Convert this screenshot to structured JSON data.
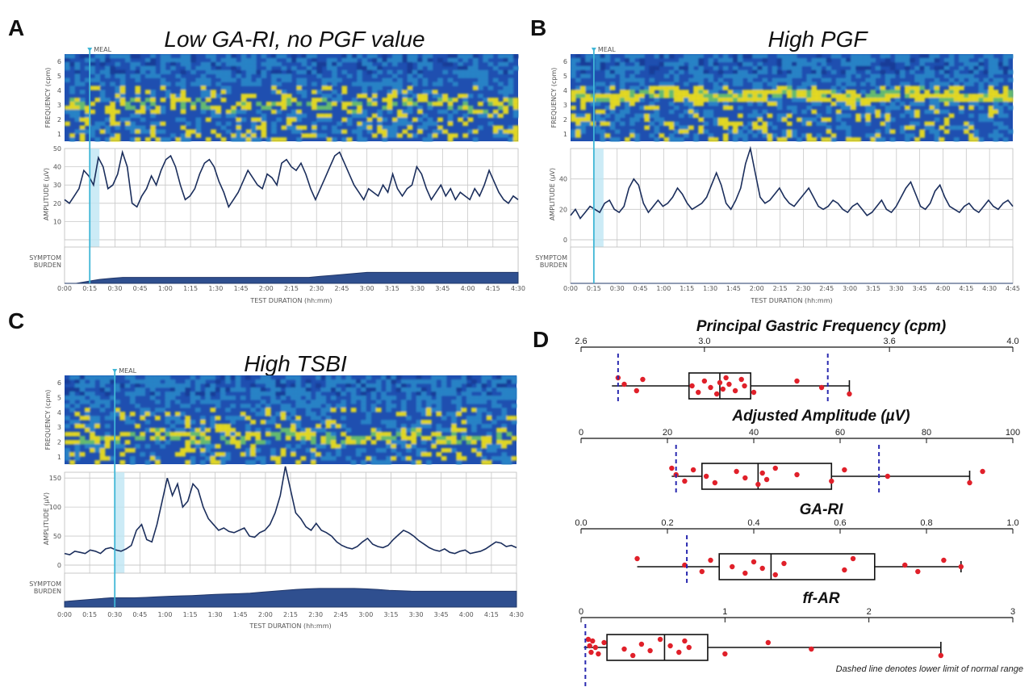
{
  "colors": {
    "spec_bg": "#1f4fb0",
    "spec_mid": "#2a86c8",
    "spec_hot": "#f2e21a",
    "spec_warm": "#6cc46a",
    "line": "#1b2e5c",
    "meal": "#3fb6d6",
    "meal_band": "#bfe6f4",
    "fill": "#2f4f8f",
    "box_point": "#e0202a",
    "dash": "#2a2ab0"
  },
  "panels": {
    "A": {
      "label": "A",
      "title": "Low GA-RI, no PGF value",
      "meal": "MEAL",
      "freq_ylabel": "FREQUENCY (cpm)",
      "amp_ylabel": "AMPLITUDE (µV)",
      "sym_ylabel": "SYMPTOM BURDEN",
      "xlabel": "TEST DURATION (hh:mm)",
      "amp_ticks": [
        "10",
        "20",
        "30",
        "40",
        "50"
      ]
    },
    "B": {
      "label": "B",
      "title": "High PGF",
      "meal": "MEAL",
      "freq_ylabel": "FREQUENCY (cpm)",
      "amp_ylabel": "AMPLITUDE (µV)",
      "sym_ylabel": "SYMPTOM BURDEN",
      "xlabel": "TEST DURATION (hh:mm)",
      "amp_ticks": [
        "0",
        "20",
        "40"
      ]
    },
    "C": {
      "label": "C",
      "title": "High TSBI",
      "meal": "MEAL",
      "freq_ylabel": "FREQUENCY (cpm)",
      "amp_ylabel": "AMPLITUDE (µV)",
      "sym_ylabel": "SYMPTOM BURDEN",
      "xlabel": "TEST DURATION (hh:mm)",
      "amp_ticks": [
        "0",
        "50",
        "100",
        "150"
      ]
    },
    "D": {
      "label": "D",
      "note": "Dashed line denotes lower limit of normal range"
    }
  },
  "chart_data": [
    {
      "type": "line",
      "panel": "A",
      "title": "Low GA-RI, no PGF value",
      "x_ticks": [
        "0:00",
        "0:15",
        "0:30",
        "0:45",
        "1:00",
        "1:15",
        "1:30",
        "1:45",
        "2:00",
        "2:15",
        "2:30",
        "2:45",
        "3:00",
        "3:15",
        "3:30",
        "3:45",
        "4:00",
        "4:15",
        "4:30"
      ],
      "meal_at": 1,
      "freq_ticks": [
        "1",
        "2",
        "3",
        "4",
        "5",
        "6"
      ],
      "ylim": [
        0,
        50
      ],
      "amplitude": [
        22,
        20,
        24,
        28,
        38,
        35,
        30,
        45,
        40,
        28,
        30,
        36,
        48,
        40,
        20,
        18,
        24,
        28,
        35,
        30,
        38,
        44,
        46,
        40,
        30,
        22,
        24,
        28,
        36,
        42,
        44,
        40,
        32,
        26,
        18,
        22,
        26,
        32,
        38,
        34,
        30,
        28,
        36,
        34,
        30,
        42,
        44,
        40,
        38,
        42,
        36,
        28,
        22,
        28,
        34,
        40,
        46,
        48,
        42,
        36,
        30,
        26,
        22,
        28,
        26,
        24,
        30,
        26,
        36,
        28,
        24,
        28,
        30,
        40,
        36,
        28,
        22,
        26,
        30,
        24,
        28,
        22,
        26,
        24,
        22,
        28,
        24,
        30,
        38,
        32,
        26,
        22,
        20,
        24,
        22
      ],
      "symptom": [
        0,
        0,
        0.1,
        0.2,
        0.25,
        0.3,
        0.3,
        0.3,
        0.3,
        0.3,
        0.3,
        0.3,
        0.3,
        0.3,
        0.3,
        0.3,
        0.3,
        0.3,
        0.3,
        0.3,
        0.3,
        0.3,
        0.35,
        0.4,
        0.45,
        0.5,
        0.55,
        0.55,
        0.55,
        0.55,
        0.55,
        0.55,
        0.55,
        0.55,
        0.55,
        0.55,
        0.55,
        0.55,
        0.55,
        0.55
      ]
    },
    {
      "type": "line",
      "panel": "B",
      "title": "High PGF",
      "x_ticks": [
        "0:00",
        "0:15",
        "0:30",
        "0:45",
        "1:00",
        "1:15",
        "1:30",
        "1:45",
        "2:00",
        "2:15",
        "2:30",
        "2:45",
        "3:00",
        "3:15",
        "3:30",
        "3:45",
        "4:00",
        "4:15",
        "4:30",
        "4:45"
      ],
      "meal_at": 1,
      "freq_ticks": [
        "1",
        "2",
        "3",
        "4",
        "5",
        "6"
      ],
      "ylim": [
        0,
        60
      ],
      "amplitude": [
        16,
        20,
        14,
        18,
        22,
        20,
        18,
        24,
        26,
        20,
        18,
        22,
        34,
        40,
        36,
        24,
        18,
        22,
        26,
        22,
        24,
        28,
        34,
        30,
        24,
        20,
        22,
        24,
        28,
        36,
        44,
        36,
        24,
        20,
        26,
        34,
        50,
        60,
        44,
        28,
        24,
        26,
        30,
        34,
        28,
        24,
        22,
        26,
        30,
        34,
        28,
        22,
        20,
        22,
        26,
        24,
        20,
        18,
        22,
        24,
        20,
        16,
        18,
        22,
        26,
        20,
        18,
        22,
        28,
        34,
        38,
        30,
        22,
        20,
        24,
        32,
        36,
        28,
        22,
        20,
        18,
        22,
        24,
        20,
        18,
        22,
        26,
        22,
        20,
        24,
        26,
        22
      ],
      "symptom": [
        0,
        0,
        0,
        0,
        0,
        0,
        0,
        0,
        0,
        0,
        0,
        0,
        0,
        0,
        0,
        0,
        0,
        0,
        0,
        0,
        0,
        0,
        0,
        0,
        0,
        0,
        0,
        0,
        0,
        0,
        0,
        0,
        0,
        0,
        0,
        0,
        0,
        0,
        0,
        0
      ]
    },
    {
      "type": "line",
      "panel": "C",
      "title": "High TSBI",
      "x_ticks": [
        "0:00",
        "0:15",
        "0:30",
        "0:45",
        "1:00",
        "1:15",
        "1:30",
        "1:45",
        "2:00",
        "2:15",
        "2:30",
        "2:45",
        "3:00",
        "3:15",
        "3:30",
        "3:45",
        "4:00",
        "4:15",
        "4:30"
      ],
      "meal_at": 2,
      "freq_ticks": [
        "1",
        "2",
        "3",
        "4",
        "5",
        "6"
      ],
      "ylim": [
        0,
        160
      ],
      "amplitude": [
        20,
        18,
        24,
        22,
        20,
        26,
        24,
        20,
        28,
        30,
        26,
        24,
        28,
        34,
        60,
        70,
        44,
        40,
        70,
        110,
        150,
        120,
        140,
        100,
        110,
        140,
        130,
        100,
        80,
        70,
        60,
        64,
        58,
        56,
        60,
        64,
        50,
        48,
        56,
        60,
        70,
        90,
        120,
        170,
        130,
        90,
        80,
        66,
        60,
        72,
        60,
        56,
        50,
        40,
        34,
        30,
        28,
        32,
        40,
        46,
        36,
        32,
        30,
        34,
        44,
        52,
        60,
        56,
        50,
        42,
        36,
        30,
        26,
        24,
        28,
        22,
        20,
        24,
        26,
        20,
        22,
        24,
        28,
        34,
        40,
        38,
        32,
        34,
        30
      ],
      "symptom": [
        0.3,
        0.35,
        0.4,
        0.45,
        0.5,
        0.5,
        0.5,
        0.52,
        0.55,
        0.58,
        0.6,
        0.62,
        0.65,
        0.68,
        0.7,
        0.72,
        0.75,
        0.8,
        0.85,
        0.9,
        0.95,
        0.98,
        1.0,
        1.0,
        1.0,
        1.0,
        0.98,
        0.95,
        0.9,
        0.88,
        0.85,
        0.85,
        0.85,
        0.85,
        0.85,
        0.85,
        0.85,
        0.85,
        0.85,
        0.85
      ]
    },
    {
      "type": "box",
      "panel": "D",
      "title": "Principal Gastric Frequency (cpm)",
      "x_ticks": [
        "2.6",
        "3.0",
        "3.6",
        "4.0"
      ],
      "xlim": [
        2.6,
        4.0
      ],
      "whisker": [
        2.7,
        3.47
      ],
      "box": [
        2.95,
        3.15
      ],
      "median": 3.05,
      "lower_normal": 2.72,
      "upper_dash": 3.4,
      "points": [
        2.72,
        2.74,
        2.78,
        2.8,
        2.96,
        2.98,
        3.0,
        3.02,
        3.04,
        3.05,
        3.06,
        3.07,
        3.08,
        3.1,
        3.12,
        3.13,
        3.16,
        3.3,
        3.38,
        3.47
      ]
    },
    {
      "type": "box",
      "panel": "D",
      "title": "Adjusted Amplitude (µV)",
      "x_ticks": [
        "0",
        "20",
        "40",
        "60",
        "80",
        "100"
      ],
      "xlim": [
        0,
        100
      ],
      "whisker": [
        21,
        90
      ],
      "box": [
        28,
        58
      ],
      "median": 41,
      "lower_normal": 22,
      "upper_dash": 69,
      "points": [
        21,
        22,
        24,
        26,
        29,
        31,
        36,
        38,
        41,
        42,
        43,
        45,
        50,
        58,
        61,
        71,
        90,
        93
      ]
    },
    {
      "type": "box",
      "panel": "D",
      "title": "GA-RI",
      "x_ticks": [
        "0.0",
        "0.2",
        "0.4",
        "0.6",
        "0.8",
        "1.0"
      ],
      "xlim": [
        0,
        1.0
      ],
      "whisker": [
        0.13,
        0.88
      ],
      "box": [
        0.32,
        0.68
      ],
      "median": 0.44,
      "lower_normal": 0.245,
      "points": [
        0.13,
        0.24,
        0.28,
        0.3,
        0.35,
        0.38,
        0.4,
        0.42,
        0.45,
        0.47,
        0.61,
        0.63,
        0.75,
        0.78,
        0.84,
        0.88
      ]
    },
    {
      "type": "box",
      "panel": "D",
      "title": "ff-AR",
      "x_ticks": [
        "0",
        "1",
        "2",
        "3"
      ],
      "xlim": [
        0,
        3
      ],
      "whisker": [
        0.02,
        2.5
      ],
      "box": [
        0.18,
        0.88
      ],
      "median": 0.58,
      "lower_normal": 0.03,
      "points": [
        0.05,
        0.06,
        0.07,
        0.08,
        0.1,
        0.12,
        0.16,
        0.3,
        0.36,
        0.42,
        0.48,
        0.55,
        0.62,
        0.68,
        0.72,
        0.75,
        1.0,
        1.3,
        1.6,
        2.5
      ]
    }
  ]
}
